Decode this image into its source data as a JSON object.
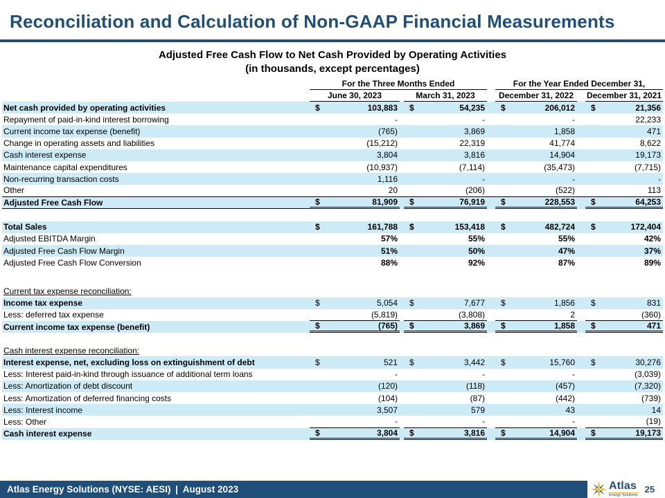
{
  "slide_title": "Reconciliation and Calculation of Non-GAAP Financial Measurements",
  "table_title": {
    "line1": "Adjusted Free Cash Flow to Net Cash Provided by Operating Activities",
    "line2": "(in thousands, except percentages)"
  },
  "columns": {
    "groups": [
      "For the Three Months Ended",
      "For the Year Ended December 31,"
    ],
    "dates": [
      "June 30, 2023",
      "March 31, 2023",
      "December 31, 2022",
      "December 31, 2021"
    ]
  },
  "rows": [
    {
      "label": "Net cash provided by operating activities",
      "dollar": true,
      "label_bold": true,
      "values_bold": true,
      "shaded": true,
      "values": [
        "103,883",
        "54,235",
        "206,012",
        "21,356"
      ]
    },
    {
      "label": "Repayment of paid-in-kind interest borrowing",
      "values": [
        "-",
        "-",
        "-",
        "22,233"
      ]
    },
    {
      "label": "Current income tax expense (benefit)",
      "shaded": true,
      "values": [
        "(765)",
        "3,869",
        "1,858",
        "471"
      ]
    },
    {
      "label": "Change in operating assets and liabilities",
      "values": [
        "(15,212)",
        "22,319",
        "41,774",
        "8,622"
      ]
    },
    {
      "label": "Cash interest expense",
      "shaded": true,
      "values": [
        "3,804",
        "3,816",
        "14,904",
        "19,173"
      ]
    },
    {
      "label": "Maintenance capital expenditures",
      "values": [
        "(10,937)",
        "(7,114)",
        "(35,473)",
        "(7,715)"
      ]
    },
    {
      "label": "Non-recurring transaction costs",
      "shaded": true,
      "values": [
        "1,116",
        "-",
        "-",
        "-"
      ]
    },
    {
      "label": "Other",
      "rule": "full",
      "values": [
        "20",
        "(206)",
        "(522)",
        "113"
      ]
    },
    {
      "label": "Adjusted Free Cash Flow",
      "dollar": true,
      "label_bold": true,
      "values_bold": true,
      "shaded": true,
      "total": true,
      "label_rule": true,
      "values": [
        "81,909",
        "76,919",
        "228,553",
        "64,253"
      ]
    },
    {
      "type": "spacer",
      "height": 18
    },
    {
      "label": "Total Sales",
      "dollar": true,
      "label_bold": true,
      "values_bold": true,
      "shaded": true,
      "values": [
        "161,788",
        "153,418",
        "482,724",
        "172,404"
      ]
    },
    {
      "label": "Adjusted EBITDA Margin",
      "values_bold": true,
      "values": [
        "57%",
        "55%",
        "55%",
        "42%"
      ]
    },
    {
      "label": "Adjusted Free Cash Flow Margin",
      "shaded": true,
      "values_bold": true,
      "values": [
        "51%",
        "50%",
        "47%",
        "37%"
      ]
    },
    {
      "label": "Adjusted Free Cash Flow Conversion",
      "values_bold": true,
      "values": [
        "88%",
        "92%",
        "87%",
        "89%"
      ]
    },
    {
      "type": "spacer",
      "height": 24
    },
    {
      "type": "section",
      "label": "Current tax expense reconciliation:"
    },
    {
      "label": "Income tax expense",
      "dollar": true,
      "label_bold": true,
      "shaded": true,
      "values": [
        "5,054",
        "7,677",
        "1,856",
        "831"
      ]
    },
    {
      "label": "Less: deferred tax expense",
      "rule": "vals",
      "values": [
        "(5,819)",
        "(3,808)",
        "2",
        "(360)"
      ]
    },
    {
      "label": "Current income tax expense (benefit)",
      "dollar": true,
      "label_bold": true,
      "values_bold": true,
      "shaded": true,
      "total": true,
      "values": [
        "(765)",
        "3,869",
        "1,858",
        "471"
      ]
    },
    {
      "type": "spacer",
      "height": 17
    },
    {
      "type": "section",
      "label": "Cash interest expense reconciliation:"
    },
    {
      "label": "Interest expense, net, excluding loss on extinguishment of debt",
      "dollar": true,
      "label_bold": true,
      "shaded": true,
      "values": [
        "521",
        "3,442",
        "15,760",
        "30,276"
      ]
    },
    {
      "label": "Less: Interest paid-in-kind through issuance of additional term loans",
      "values": [
        "-",
        "-",
        "-",
        "(3,039)"
      ]
    },
    {
      "label": "Less: Amortization of debt discount",
      "shaded": true,
      "values": [
        "(120)",
        "(118)",
        "(457)",
        "(7,320)"
      ]
    },
    {
      "label": "Less: Amortization of deferred financing costs",
      "values": [
        "(104)",
        "(87)",
        "(442)",
        "(739)"
      ]
    },
    {
      "label": "Less: Interest income",
      "shaded": true,
      "values": [
        "3,507",
        "579",
        "43",
        "14"
      ]
    },
    {
      "label": "Less: Other",
      "rule": "vals",
      "values": [
        "-",
        "-",
        "-",
        "(19)"
      ]
    },
    {
      "label": "Cash interest expense",
      "dollar": true,
      "label_bold": true,
      "values_bold": true,
      "shaded": true,
      "total": true,
      "values": [
        "3,804",
        "3,816",
        "14,904",
        "19,173"
      ]
    }
  ],
  "footer": {
    "bar_text": "Atlas Energy Solutions (NYSE: AESI) | August 2023",
    "page_number": "25",
    "logo": {
      "name": "Atlas",
      "subtitle": "Energy Solutions"
    }
  },
  "colors": {
    "navy": "#1F4E79",
    "row_shade": "#CDEAF7",
    "gold": "#F0B323",
    "text": "#000000",
    "footer_bar": "#1F4E79",
    "background": "#FFFFFF"
  }
}
